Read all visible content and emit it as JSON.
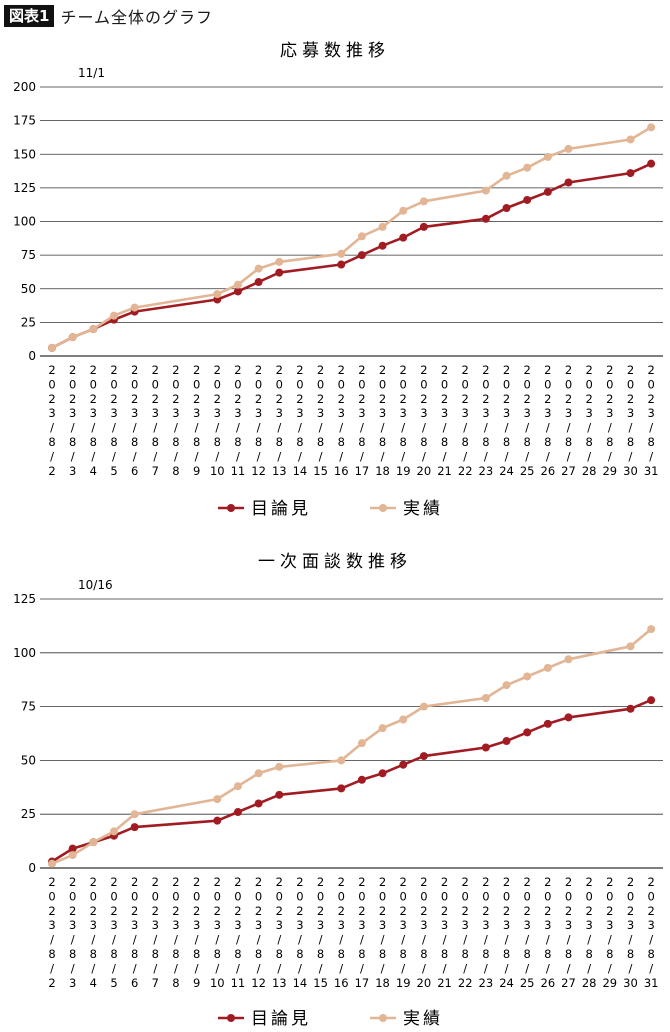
{
  "header": {
    "badge": "図表1",
    "title": "チーム全体のグラフ"
  },
  "chart_data": [
    {
      "type": "line",
      "title": "応募数推移",
      "annotation": "11/1",
      "x": [
        2,
        3,
        4,
        5,
        6,
        10,
        11,
        12,
        13,
        16,
        17,
        18,
        19,
        20,
        23,
        24,
        25,
        26,
        27,
        30,
        31
      ],
      "x_axis_labels": [
        "2",
        "3",
        "4",
        "5",
        "6",
        "7",
        "8",
        "9",
        "10",
        "11",
        "12",
        "13",
        "14",
        "15",
        "16",
        "17",
        "18",
        "19",
        "20",
        "21",
        "22",
        "23",
        "24",
        "25",
        "26",
        "27",
        "28",
        "29",
        "30",
        "31"
      ],
      "x_label_prefix": "2023/8/",
      "y_ticks": [
        "0",
        "25",
        "50",
        "75",
        "100",
        "125",
        "150",
        "175",
        "200"
      ],
      "ylim": [
        0,
        200
      ],
      "series": [
        {
          "name": "目論見",
          "color": "#a01c22",
          "values": [
            6,
            14,
            20,
            27,
            33,
            42,
            48,
            55,
            62,
            68,
            75,
            82,
            88,
            96,
            102,
            110,
            116,
            122,
            129,
            136,
            143
          ]
        },
        {
          "name": "実績",
          "color": "#e2b595",
          "values": [
            6,
            14,
            20,
            30,
            36,
            46,
            53,
            65,
            70,
            76,
            89,
            96,
            108,
            115,
            123,
            134,
            140,
            148,
            154,
            161,
            170
          ]
        }
      ],
      "grid": true
    },
    {
      "type": "line",
      "title": "一次面談数推移",
      "annotation": "10/16",
      "x": [
        2,
        3,
        4,
        5,
        6,
        10,
        11,
        12,
        13,
        16,
        17,
        18,
        19,
        20,
        23,
        24,
        25,
        26,
        27,
        30,
        31
      ],
      "x_axis_labels": [
        "2",
        "3",
        "4",
        "5",
        "6",
        "7",
        "8",
        "9",
        "10",
        "11",
        "12",
        "13",
        "14",
        "15",
        "16",
        "17",
        "18",
        "19",
        "20",
        "21",
        "22",
        "23",
        "24",
        "25",
        "26",
        "27",
        "28",
        "29",
        "30",
        "31"
      ],
      "x_label_prefix": "2023/8/",
      "y_ticks": [
        "0",
        "25",
        "50",
        "75",
        "100",
        "125"
      ],
      "ylim": [
        0,
        125
      ],
      "series": [
        {
          "name": "目論見",
          "color": "#a01c22",
          "values": [
            3,
            9,
            12,
            15,
            19,
            22,
            26,
            30,
            34,
            37,
            41,
            44,
            48,
            52,
            56,
            59,
            63,
            67,
            70,
            74,
            78
          ]
        },
        {
          "name": "実績",
          "color": "#e2b595",
          "values": [
            2,
            6,
            12,
            17,
            25,
            32,
            38,
            44,
            47,
            50,
            58,
            65,
            69,
            75,
            79,
            85,
            89,
            93,
            97,
            103,
            111
          ]
        }
      ],
      "grid": true
    }
  ]
}
